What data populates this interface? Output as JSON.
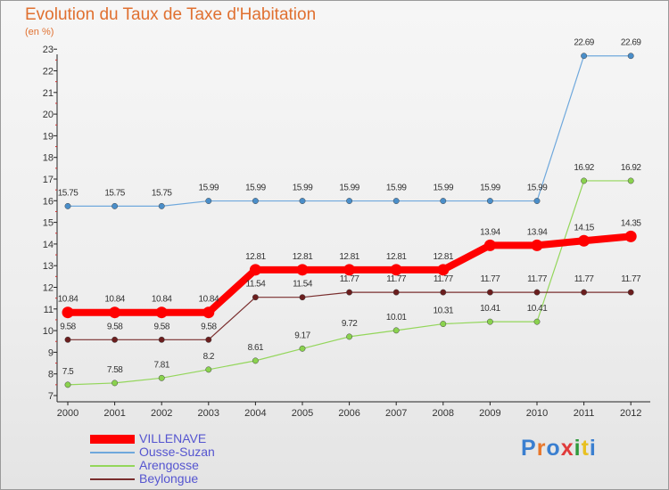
{
  "title": "Evolution du Taux de Taxe d'Habitation",
  "subtitle": "(en %)",
  "logo": "Proxiti",
  "chart_data": {
    "type": "line",
    "x": [
      "2000",
      "2001",
      "2002",
      "2003",
      "2004",
      "2005",
      "2006",
      "2007",
      "2008",
      "2009",
      "2010",
      "2011",
      "2012"
    ],
    "ylim": [
      7,
      23
    ],
    "yticks": [
      7,
      8,
      9,
      10,
      11,
      12,
      13,
      14,
      15,
      16,
      17,
      18,
      19,
      20,
      21,
      22,
      23
    ],
    "grid": false,
    "legend_position": "bottom-left",
    "series": [
      {
        "name": "VILLENAVE",
        "color": "#ff0000",
        "values": [
          10.84,
          10.84,
          10.84,
          10.84,
          12.81,
          12.81,
          12.81,
          12.81,
          12.81,
          13.94,
          13.94,
          14.15,
          14.35
        ],
        "labels": [
          "10.84",
          "10.84",
          "10.84",
          "10.84",
          "12.81",
          "12.81",
          "12.81",
          "12.81",
          "12.81",
          "13.94",
          "13.94",
          "14.15",
          "14.35"
        ]
      },
      {
        "name": "Ousse-Suzan",
        "color": "#6fa8dc",
        "values": [
          15.75,
          15.75,
          15.75,
          15.99,
          15.99,
          15.99,
          15.99,
          15.99,
          15.99,
          15.99,
          15.99,
          22.69,
          22.69
        ],
        "labels": [
          "15.75",
          "15.75",
          "15.75",
          "15.99",
          "15.99",
          "15.99",
          "15.99",
          "15.99",
          "15.99",
          "15.99",
          "15.99",
          "22.69",
          "22.69"
        ]
      },
      {
        "name": "Arengosse",
        "color": "#93d65a",
        "values": [
          7.5,
          7.58,
          7.81,
          8.2,
          8.61,
          9.17,
          9.72,
          10.01,
          10.31,
          10.41,
          10.41,
          16.92,
          16.92
        ],
        "labels": [
          "7.5",
          "7.58",
          "7.81",
          "8.2",
          "8.61",
          "9.17",
          "9.72",
          "10.01",
          "10.31",
          "10.41",
          "10.41",
          "16.92",
          "16.92"
        ]
      },
      {
        "name": "Beylongue",
        "color": "#7a2e2e",
        "values": [
          9.58,
          9.58,
          9.58,
          9.58,
          11.54,
          11.54,
          11.77,
          11.77,
          11.77,
          11.77,
          11.77,
          11.77,
          11.77
        ],
        "labels": [
          "9.58",
          "9.58",
          "9.58",
          "9.58",
          "11.54",
          "11.54",
          "11.77",
          "11.77",
          "11.77",
          "11.77",
          "11.77",
          "11.77",
          "11.77"
        ]
      }
    ]
  }
}
